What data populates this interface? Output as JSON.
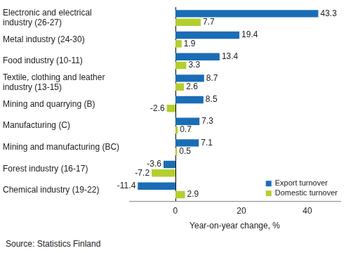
{
  "chart_data": {
    "type": "bar",
    "orientation": "horizontal",
    "x_label": "Year-on-year change, %",
    "annotations": [
      "Source: Statistics Finland"
    ],
    "categories": [
      "Electronic and electrical industry (26-27)",
      "Metal industry (24-30)",
      "Food industry (10-11)",
      "Textile, clothing and leather industry (13-15)",
      "Mining and quarrying (B)",
      "Manufacturing (C)",
      "Mining and manufacturing (BC)",
      "Forest industry (16-17)",
      "Chemical industry (19-22)"
    ],
    "series": [
      {
        "name": "Export turnover",
        "color": "#1a6db5",
        "values": [
          43.3,
          19.4,
          13.4,
          8.7,
          8.5,
          7.3,
          7.1,
          -3.6,
          -11.4
        ]
      },
      {
        "name": "Domestic turnover",
        "color": "#b3cf2f",
        "values": [
          7.7,
          1.9,
          3.3,
          2.6,
          -2.6,
          0.7,
          0.5,
          -7.2,
          2.9
        ]
      }
    ],
    "xlim": [
      -14,
      50
    ],
    "xticks": [
      0,
      20,
      40
    ],
    "grid": false,
    "legend": "lower right",
    "data_labels": true
  }
}
